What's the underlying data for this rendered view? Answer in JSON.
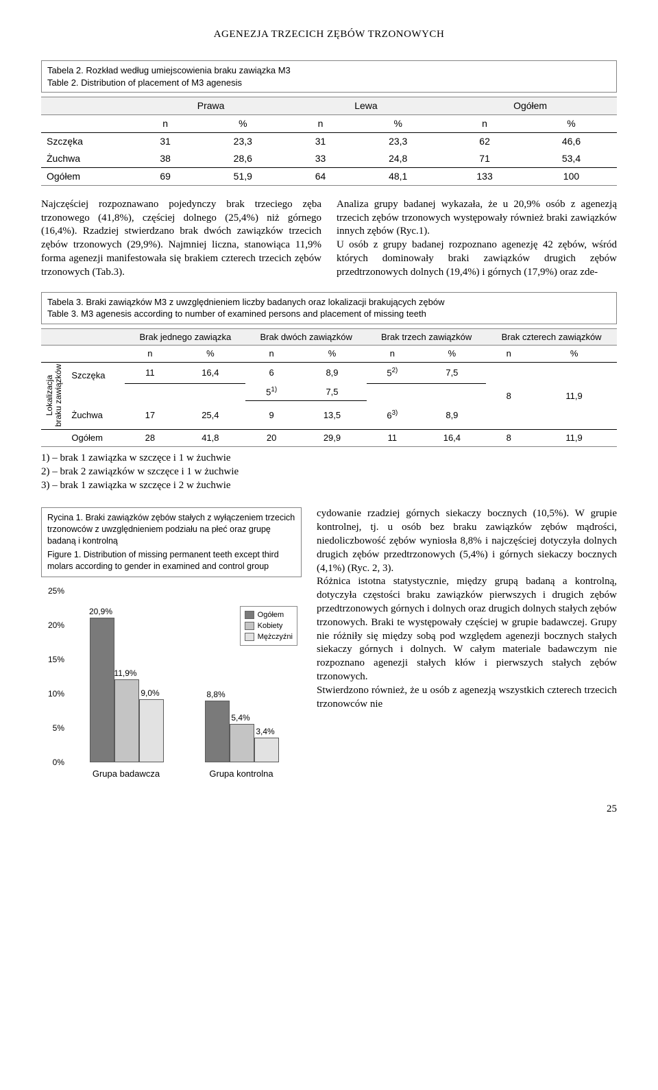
{
  "header": "AGENEZJA TRZECICH ZĘBÓW TRZONOWYCH",
  "table2": {
    "caption_pl": "Tabela 2. Rozkład według umiejscowienia braku zawiązka M3",
    "caption_en": "Table 2. Distribution of placement of M3 agenesis",
    "group_headers": [
      "Prawa",
      "Lewa",
      "Ogółem"
    ],
    "sub_headers": [
      "n",
      "%",
      "n",
      "%",
      "n",
      "%"
    ],
    "rows": [
      {
        "label": "Szczęka",
        "cells": [
          "31",
          "23,3",
          "31",
          "23,3",
          "62",
          "46,6"
        ]
      },
      {
        "label": "Żuchwa",
        "cells": [
          "38",
          "28,6",
          "33",
          "24,8",
          "71",
          "53,4"
        ]
      }
    ],
    "total": {
      "label": "Ogółem",
      "cells": [
        "69",
        "51,9",
        "64",
        "48,1",
        "133",
        "100"
      ]
    }
  },
  "para_left": "Najczęściej rozpoznawano pojedynczy brak trzeciego zęba trzonowego (41,8%), częściej dolnego (25,4%) niż górnego (16,4%). Rzadziej stwierdzano brak dwóch zawiązków trzecich zębów trzonowych (29,9%). Najmniej liczna, stanowiąca 11,9% forma agenezji manifestowała się brakiem czterech trzecich zębów trzonowych (Tab.3).",
  "para_right": "Analiza grupy badanej wykazała, że u 20,9% osób z agenezją trzecich zębów trzonowych występowały również braki zawiązków innych zębów (Ryc.1).\nU osób z grupy badanej rozpoznano agenezję 42 zębów, wśród których dominowały braki zawiązków drugich zębów przedtrzonowych dolnych (19,4%) i górnych (17,9%) oraz zde-",
  "table3": {
    "caption_pl": "Tabela 3. Braki zawiązków M3 z uwzględnieniem liczby badanych oraz lokalizacji brakujących zębów",
    "caption_en": "Table 3. M3 agenesis according to number of examined persons and placement of missing teeth",
    "group_headers": [
      "Brak jednego zawiązka",
      "Brak dwóch zawiązków",
      "Brak trzech zawiązków",
      "Brak czterech zawiązków"
    ],
    "sub_headers": [
      "n",
      "%",
      "n",
      "%",
      "n",
      "%",
      "n",
      "%"
    ],
    "side_label": "Lokalizacja\nbraku zawiązków",
    "row1": {
      "label": "Szczęka",
      "n1": "11",
      "p1": "16,4",
      "n2": "6",
      "p2": "8,9",
      "n3": "5",
      "sup3": "2)",
      "p3": "7,5"
    },
    "mid_upper": {
      "n": "5",
      "sup": "1)",
      "p": "7,5"
    },
    "mid_lower": {
      "n": "9",
      "p": "13,5"
    },
    "row2": {
      "label": "Żuchwa",
      "n1": "17",
      "p1": "25,4",
      "n3": "6",
      "sup3": "3)",
      "p3": "8,9"
    },
    "right_span": {
      "n": "8",
      "p": "11,9"
    },
    "total": {
      "label": "Ogółem",
      "cells": [
        "28",
        "41,8",
        "20",
        "29,9",
        "11",
        "16,4",
        "8",
        "11,9"
      ]
    },
    "footnotes": [
      "1) – brak 1 zawiązka w szczęce i 1 w żuchwie",
      "2) – brak 2 zawiązków w szczęce i 1 w żuchwie",
      "3) – brak 1 zawiązka w szczęce i 2 w żuchwie"
    ]
  },
  "figure1": {
    "caption_pl": "Rycina 1. Braki zawiązków zębów stałych z wyłączeniem trzecich trzonowców z uwzględnieniem podziału na płeć oraz grupę badaną i kontrolną",
    "caption_en": "Figure 1. Distribution of missing permanent teeth except third molars according to gender in examined and control group",
    "chart": {
      "type": "bar",
      "ylim": [
        0,
        25
      ],
      "ytick_step": 5,
      "y_suffix": "%",
      "y_ticks": [
        "25%",
        "20%",
        "15%",
        "10%",
        "5%",
        "0%"
      ],
      "groups": [
        "Grupa badawcza",
        "Grupa kontrolna"
      ],
      "series": [
        "Ogółem",
        "Kobiety",
        "Mężczyźni"
      ],
      "series_colors": [
        "#7a7a7a",
        "#c4c4c4",
        "#e2e2e2"
      ],
      "values": [
        [
          20.9,
          11.9,
          9.0
        ],
        [
          8.8,
          5.4,
          3.4
        ]
      ],
      "value_labels": [
        [
          "20,9%",
          "11,9%",
          "9,0%"
        ],
        [
          "8,8%",
          "5,4%",
          "3,4%"
        ]
      ],
      "bar_border": "#5a5a5a",
      "background": "#ffffff",
      "label_fontsize": 12
    }
  },
  "right_body": "cydowanie rzadziej  górnych siekaczy bocznych (10,5%). W grupie kontrolnej, tj. u osób bez braku zawiązków zębów mądrości, niedoliczbowość zębów wyniosła 8,8% i najczęściej dotyczyła dolnych drugich zębów przedtrzonowych (5,4%) i górnych siekaczy bocznych (4,1%) (Ryc. 2, 3).\nRóżnica istotna statystycznie, między grupą badaną a kontrolną, dotyczyła częstości braku zawiązków pierwszych i drugich zębów przedtrzonowych górnych i dolnych oraz drugich dolnych stałych zębów trzonowych. Braki te występowały częściej w grupie badawczej. Grupy nie różniły się między sobą pod względem agenezji bocznych stałych siekaczy górnych i dolnych. W całym materiale badawczym nie rozpoznano agenezji stałych kłów i pierwszych stałych zębów trzonowych.\nStwierdzono również, że u osób z agenezją wszystkich czterech trzecich trzonowców nie",
  "page_num": "25"
}
